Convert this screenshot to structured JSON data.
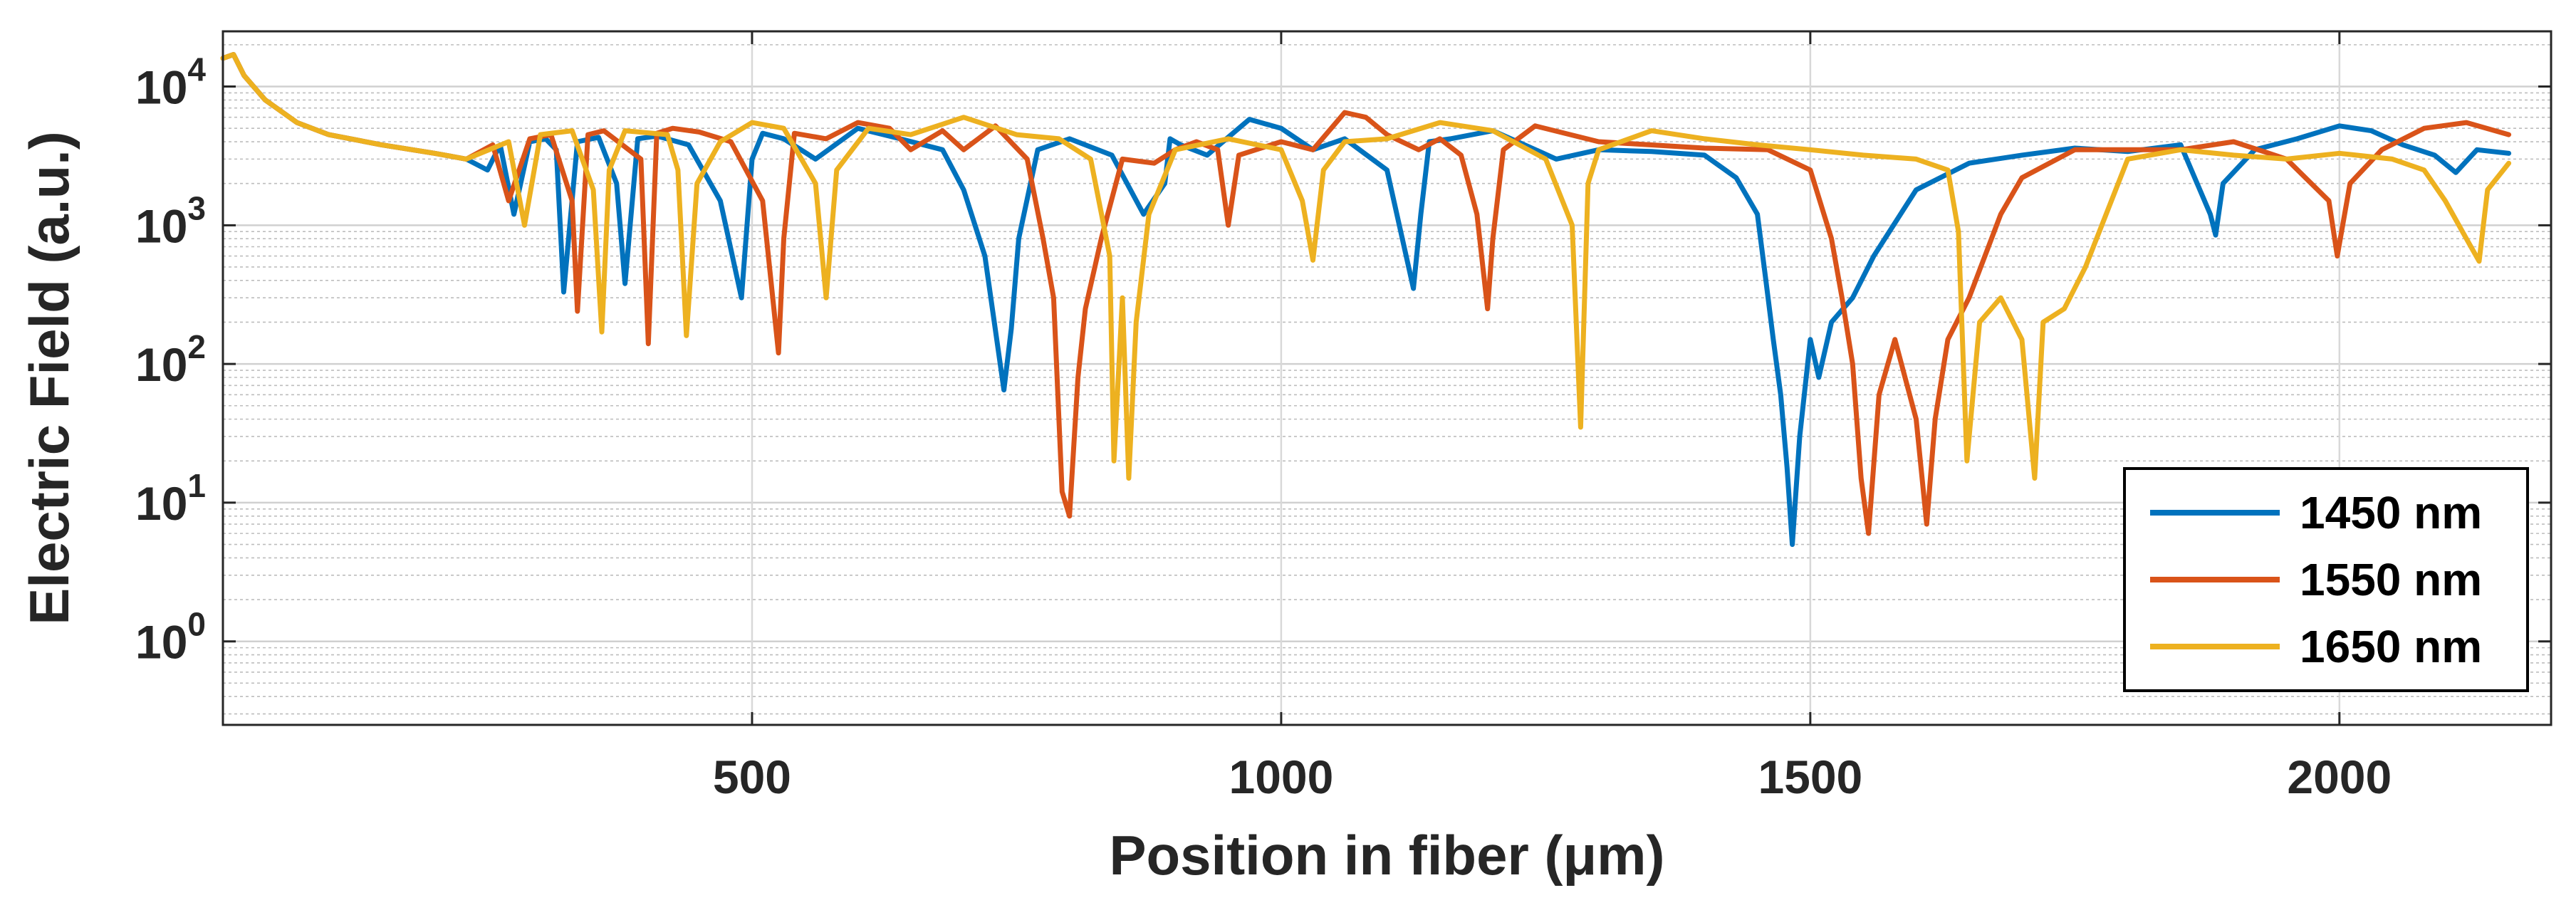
{
  "chart_data": {
    "type": "line",
    "title": "",
    "xlabel": "Position in fiber (μm)",
    "ylabel": "Electric Field (a.u.)",
    "xlim": [
      0,
      2200
    ],
    "ylim": [
      0.25,
      25000
    ],
    "yscale": "log",
    "grid": true,
    "legend_position": "bottom-right",
    "x_ticks": [
      500,
      1000,
      1500,
      2000
    ],
    "x_tick_labels": [
      "500",
      "1000",
      "1500",
      "2000"
    ],
    "y_ticks": [
      1,
      10,
      100,
      1000,
      10000
    ],
    "y_tick_labels": [
      {
        "base": "10",
        "exp": "0"
      },
      {
        "base": "10",
        "exp": "1"
      },
      {
        "base": "10",
        "exp": "2"
      },
      {
        "base": "10",
        "exp": "3"
      },
      {
        "base": "10",
        "exp": "4"
      }
    ],
    "series": [
      {
        "name": "1450 nm",
        "color": "#0072BD",
        "x": [
          0,
          10,
          20,
          40,
          70,
          100,
          150,
          200,
          230,
          250,
          262,
          275,
          290,
          305,
          315,
          322,
          335,
          355,
          372,
          380,
          392,
          410,
          440,
          470,
          490,
          500,
          510,
          530,
          560,
          600,
          640,
          680,
          700,
          720,
          738,
          745,
          752,
          770,
          800,
          840,
          870,
          890,
          895,
          905,
          930,
          970,
          1000,
          1030,
          1060,
          1100,
          1125,
          1132,
          1140,
          1160,
          1200,
          1230,
          1260,
          1300,
          1350,
          1400,
          1430,
          1450,
          1458,
          1465,
          1472,
          1478,
          1483,
          1490,
          1500,
          1508,
          1520,
          1540,
          1560,
          1600,
          1650,
          1700,
          1750,
          1800,
          1850,
          1878,
          1883,
          1890,
          1920,
          1960,
          2000,
          2030,
          2060,
          2090,
          2110,
          2130,
          2160
        ],
        "y": [
          16000,
          17000,
          12000,
          8000,
          5500,
          4500,
          3800,
          3300,
          3000,
          2500,
          3800,
          1200,
          4000,
          4200,
          3500,
          330,
          4000,
          4300,
          2000,
          380,
          4200,
          4400,
          3800,
          1500,
          300,
          3000,
          4600,
          4200,
          3000,
          5000,
          4200,
          3500,
          1800,
          600,
          65,
          180,
          800,
          3500,
          4200,
          3200,
          1200,
          2000,
          4200,
          3800,
          3200,
          5800,
          5000,
          3500,
          4200,
          2500,
          350,
          1200,
          4000,
          4200,
          4800,
          3800,
          3000,
          3500,
          3400,
          3200,
          2200,
          1200,
          400,
          150,
          60,
          18,
          5,
          30,
          150,
          80,
          200,
          300,
          600,
          1800,
          2800,
          3200,
          3600,
          3400,
          3800,
          1200,
          850,
          2000,
          3500,
          4200,
          5200,
          4800,
          3800,
          3200,
          2400,
          3500,
          3300
        ]
      },
      {
        "name": "1550 nm",
        "color": "#D95319",
        "x": [
          0,
          10,
          20,
          40,
          70,
          100,
          150,
          200,
          230,
          255,
          270,
          290,
          310,
          330,
          335,
          345,
          360,
          395,
          402,
          410,
          425,
          450,
          480,
          510,
          525,
          530,
          540,
          570,
          600,
          630,
          650,
          680,
          700,
          730,
          760,
          775,
          785,
          793,
          800,
          808,
          815,
          830,
          850,
          880,
          900,
          920,
          940,
          950,
          960,
          1000,
          1030,
          1060,
          1080,
          1100,
          1130,
          1150,
          1170,
          1185,
          1195,
          1200,
          1210,
          1240,
          1300,
          1400,
          1460,
          1500,
          1520,
          1530,
          1540,
          1548,
          1555,
          1565,
          1580,
          1600,
          1610,
          1618,
          1630,
          1650,
          1680,
          1700,
          1750,
          1800,
          1850,
          1900,
          1950,
          1990,
          1998,
          2010,
          2040,
          2080,
          2120,
          2160
        ],
        "y": [
          16000,
          17000,
          12000,
          8000,
          5500,
          4500,
          3800,
          3300,
          3000,
          3800,
          1500,
          4200,
          4500,
          1500,
          240,
          4500,
          4800,
          3000,
          140,
          4600,
          5000,
          4700,
          4000,
          1500,
          120,
          800,
          4600,
          4200,
          5500,
          5000,
          3500,
          4800,
          3500,
          5200,
          3000,
          800,
          300,
          12,
          8,
          80,
          250,
          800,
          3000,
          2800,
          3500,
          4000,
          3500,
          1000,
          3200,
          4000,
          3500,
          6500,
          6000,
          4500,
          3500,
          4200,
          3200,
          1200,
          250,
          800,
          3500,
          5200,
          4000,
          3600,
          3500,
          2500,
          800,
          300,
          100,
          15,
          6,
          60,
          150,
          40,
          7,
          40,
          150,
          300,
          1200,
          2200,
          3500,
          3500,
          3500,
          4000,
          3000,
          1500,
          600,
          2000,
          3500,
          5000,
          5500,
          4500
        ]
      },
      {
        "name": "1650 nm",
        "color": "#EDB120",
        "x": [
          0,
          10,
          20,
          40,
          70,
          100,
          150,
          200,
          230,
          270,
          285,
          300,
          330,
          350,
          358,
          365,
          380,
          420,
          430,
          438,
          448,
          470,
          500,
          530,
          560,
          570,
          580,
          610,
          650,
          700,
          750,
          790,
          820,
          838,
          842,
          850,
          856,
          863,
          875,
          900,
          950,
          1000,
          1020,
          1030,
          1040,
          1060,
          1100,
          1150,
          1200,
          1250,
          1275,
          1283,
          1290,
          1300,
          1350,
          1400,
          1450,
          1500,
          1550,
          1600,
          1630,
          1640,
          1648,
          1660,
          1680,
          1700,
          1712,
          1720,
          1740,
          1760,
          1800,
          1850,
          1900,
          1950,
          2000,
          2050,
          2080,
          2100,
          2120,
          2132,
          2140,
          2160
        ],
        "y": [
          16000,
          17000,
          12000,
          8000,
          5500,
          4500,
          3800,
          3300,
          3000,
          4000,
          1000,
          4500,
          4800,
          1800,
          170,
          2500,
          4800,
          4500,
          2500,
          160,
          2000,
          4000,
          5500,
          5000,
          2000,
          300,
          2500,
          5000,
          4500,
          6000,
          4500,
          4200,
          3000,
          600,
          20,
          300,
          15,
          200,
          1200,
          3500,
          4200,
          3500,
          1500,
          560,
          2500,
          4000,
          4200,
          5500,
          4800,
          3000,
          1000,
          35,
          2000,
          3500,
          4800,
          4200,
          3800,
          3500,
          3200,
          3000,
          2500,
          900,
          20,
          200,
          300,
          150,
          15,
          200,
          250,
          500,
          3000,
          3500,
          3200,
          3000,
          3300,
          3000,
          2500,
          1500,
          800,
          550,
          1800,
          2800
        ]
      }
    ]
  }
}
